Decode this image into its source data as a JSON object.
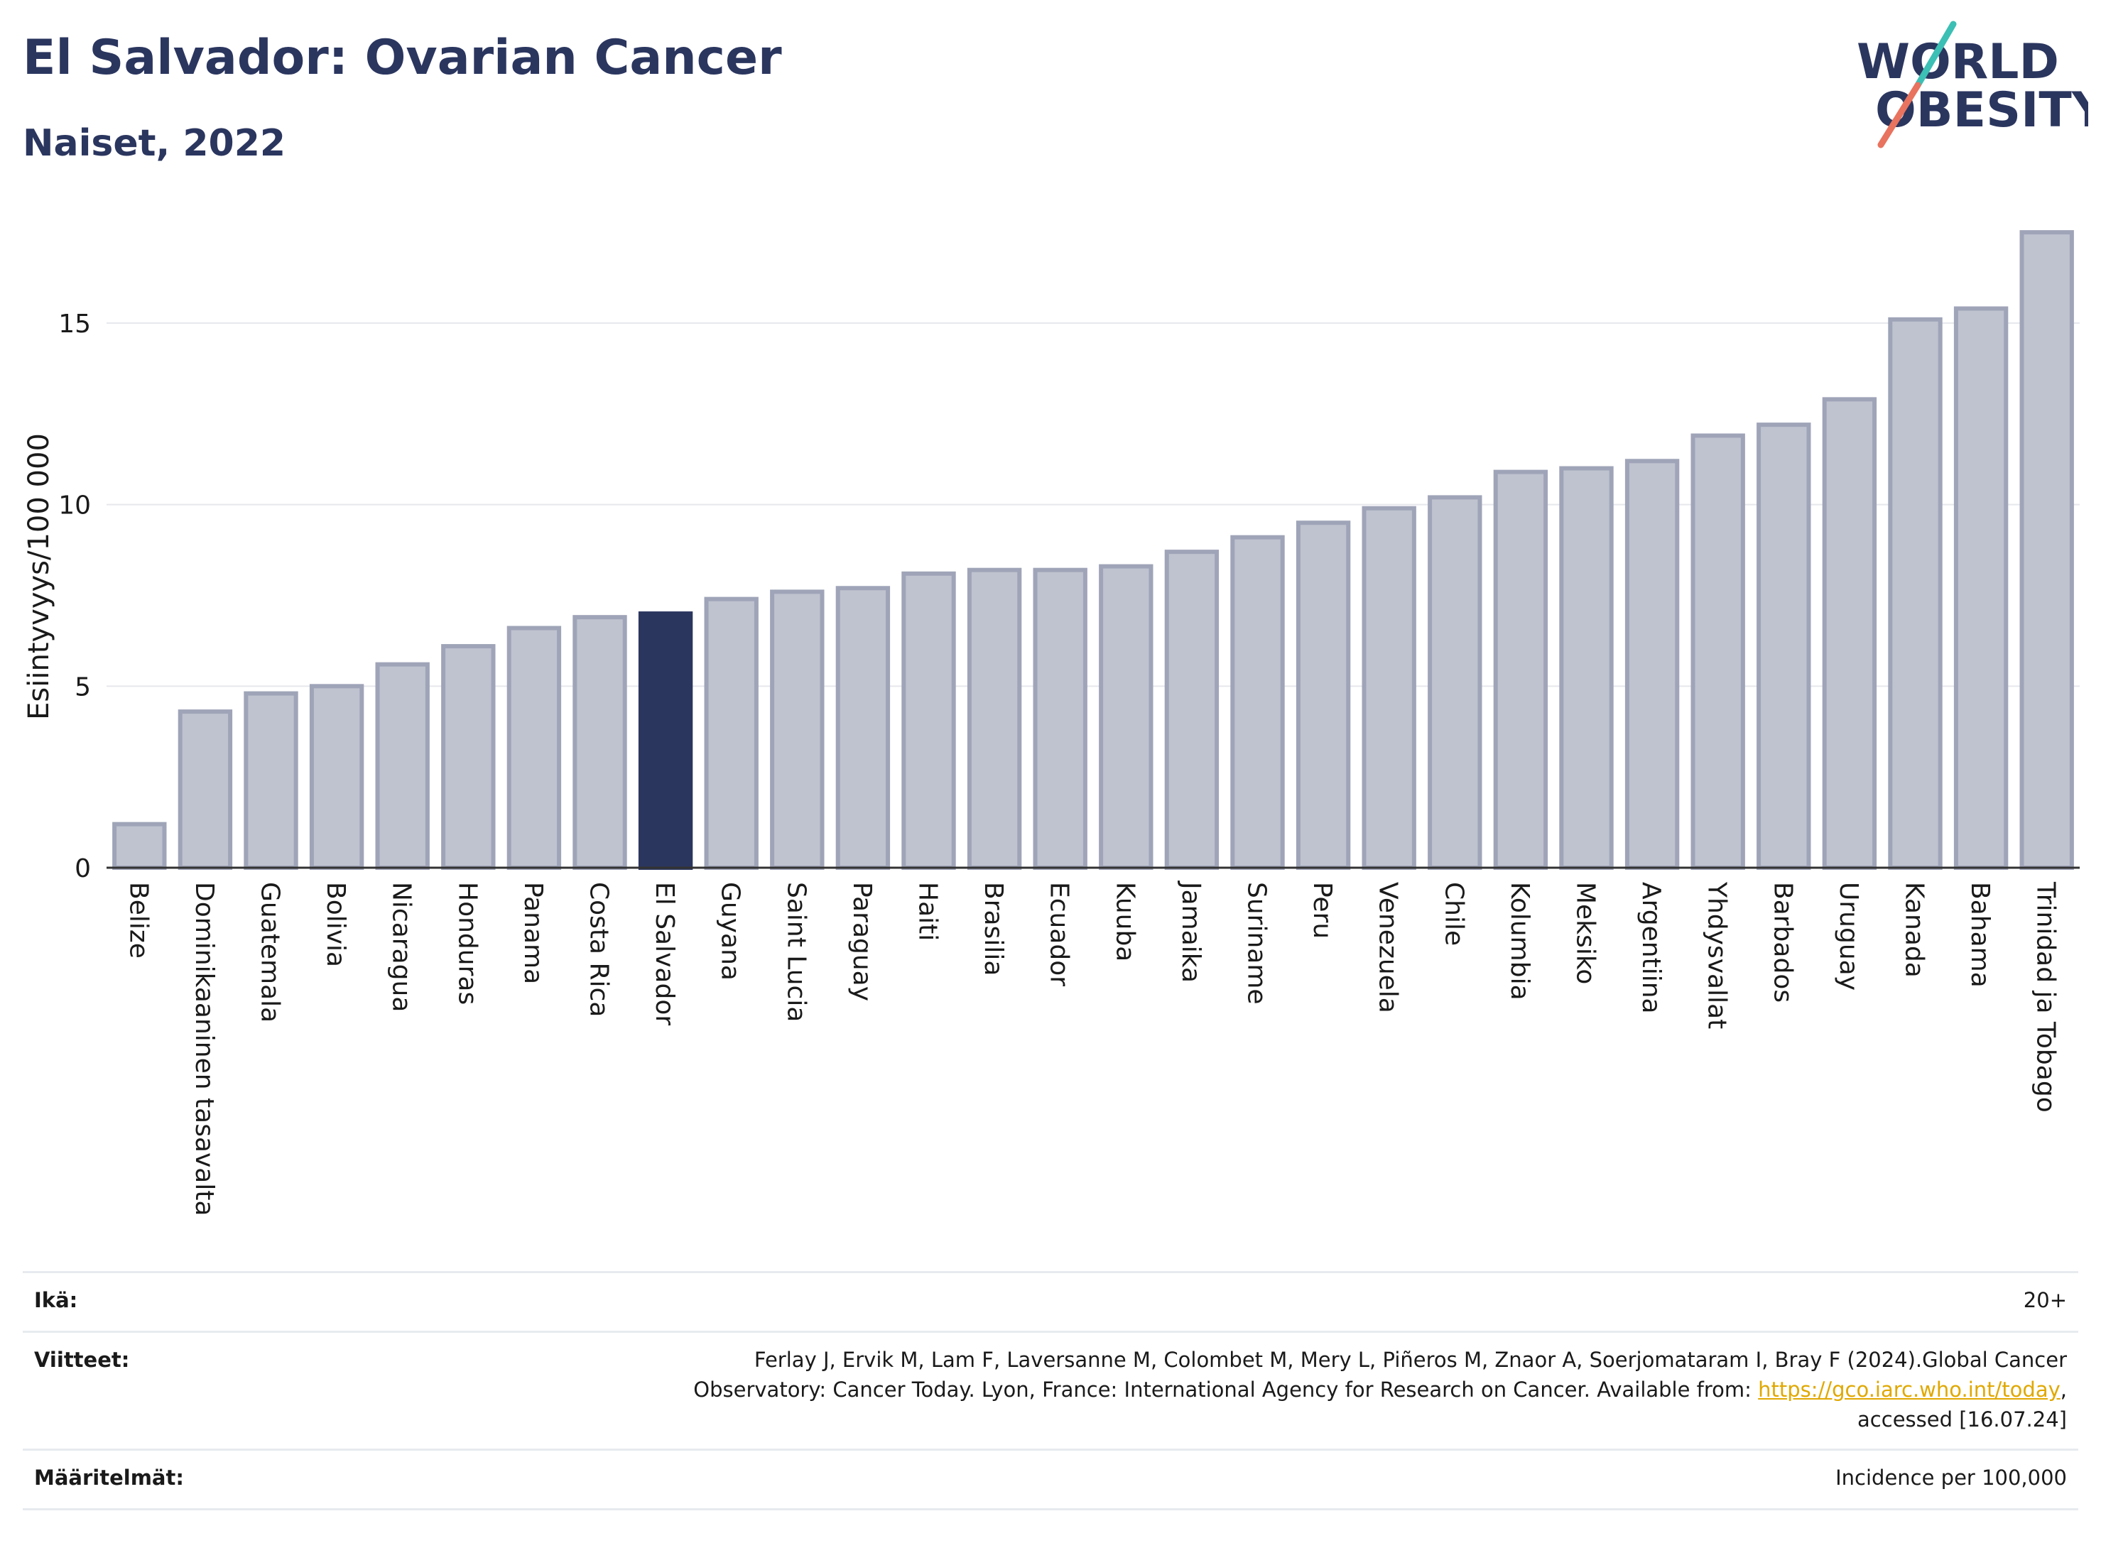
{
  "header": {
    "title": "El Salvador: Ovarian Cancer",
    "subtitle": "Naiset, 2022",
    "logo_text_top": "WORLD",
    "logo_text_bottom": "OBESITY"
  },
  "colors": {
    "highlight": "#2b365f",
    "bar": "#bfc3cf",
    "bar_border": "#9fa4b8",
    "title": "#2b365f",
    "logo_slash_teal": "#3cbfb4",
    "logo_slash_coral": "#e8735e",
    "link": "#e0a800"
  },
  "chart_data": {
    "type": "bar",
    "ylabel": "Esiintyvyys/100 000",
    "ylim": [
      0,
      17.6
    ],
    "yticks": [
      0,
      5,
      10,
      15
    ],
    "grid": true,
    "highlight_category": "El Salvador",
    "categories": [
      "Belize",
      "Dominikaaninen tasavalta",
      "Guatemala",
      "Bolivia",
      "Nicaragua",
      "Honduras",
      "Panama",
      "Costa Rica",
      "El Salvador",
      "Guyana",
      "Saint Lucia",
      "Paraguay",
      "Haiti",
      "Brasilia",
      "Ecuador",
      "Kuuba",
      "Jamaika",
      "Suriname",
      "Peru",
      "Venezuela",
      "Chile",
      "Kolumbia",
      "Meksiko",
      "Argentiina",
      "Yhdysvallat",
      "Barbados",
      "Uruguay",
      "Kanada",
      "Bahama",
      "Trinidad ja Tobago"
    ],
    "values": [
      1.2,
      4.3,
      4.8,
      5.0,
      5.6,
      6.1,
      6.6,
      6.9,
      7.0,
      7.4,
      7.6,
      7.7,
      8.1,
      8.2,
      8.2,
      8.3,
      8.7,
      9.1,
      9.5,
      9.9,
      10.2,
      10.9,
      11.0,
      11.2,
      11.9,
      12.2,
      12.9,
      15.1,
      15.4,
      17.5
    ]
  },
  "footer": {
    "age_label": "Ikä:",
    "age_value": "20+",
    "refs_label": "Viitteet:",
    "refs_line1": "Ferlay J, Ervik M, Lam F, Laversanne M, Colombet M, Mery L, Piñeros M, Znaor A, Soerjomataram I, Bray F (2024).Global Cancer",
    "refs_line2_pre": "Observatory: Cancer Today. Lyon, France: International Agency for Research on Cancer. Available from: ",
    "refs_link": "https://gco.iarc.who.int/today",
    "refs_line2_post": ",",
    "refs_line3": "accessed [16.07.24]",
    "defs_label": "Määritelmät:",
    "defs_value": "Incidence per 100,000"
  }
}
